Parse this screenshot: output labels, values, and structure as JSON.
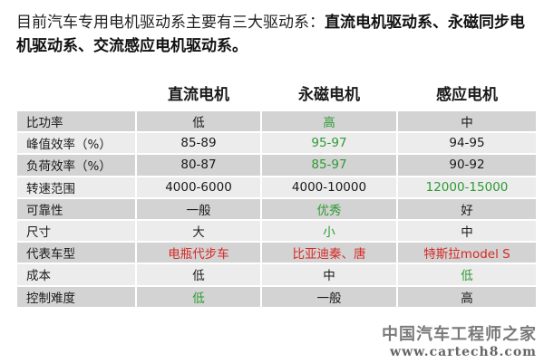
{
  "intro": {
    "normal": "目前汽车专用电机驱动系主要有三大驱动系：",
    "bold": "直流电机驱动系、永磁同步电机驱动系、交流感应电机驱动系。"
  },
  "table": {
    "headers": [
      "",
      "直流电机",
      "永磁电机",
      "感应电机"
    ],
    "rows": [
      {
        "label": "比功率",
        "values": [
          "低",
          "高",
          "中"
        ]
      },
      {
        "label": "峰值效率（%）",
        "values": [
          "85-89",
          "95-97",
          "94-95"
        ]
      },
      {
        "label": "负荷效率（%）",
        "values": [
          "80-87",
          "85-97",
          "90-92"
        ]
      },
      {
        "label": "转速范围",
        "values": [
          "4000-6000",
          "4000-10000",
          "12000-15000"
        ]
      },
      {
        "label": "可靠性",
        "values": [
          "一般",
          "优秀",
          "好"
        ]
      },
      {
        "label": "尺寸",
        "values": [
          "大",
          "小",
          "中"
        ]
      },
      {
        "label": "代表车型",
        "values": [
          "电瓶代步车",
          "比亚迪秦、唐",
          "特斯拉model S"
        ]
      },
      {
        "label": "成本",
        "values": [
          "低",
          "中",
          "低"
        ]
      },
      {
        "label": "控制难度",
        "values": [
          "低",
          "一般",
          "高"
        ]
      }
    ]
  },
  "colors": {
    "highlight_green": "#2e9a34",
    "highlight_red": "#d42a25",
    "row_dark": "#d3d3d3",
    "row_light": "#ececec"
  },
  "watermark": {
    "site_name": "中国汽车工程师之家",
    "url": "www.cartech8.com"
  }
}
